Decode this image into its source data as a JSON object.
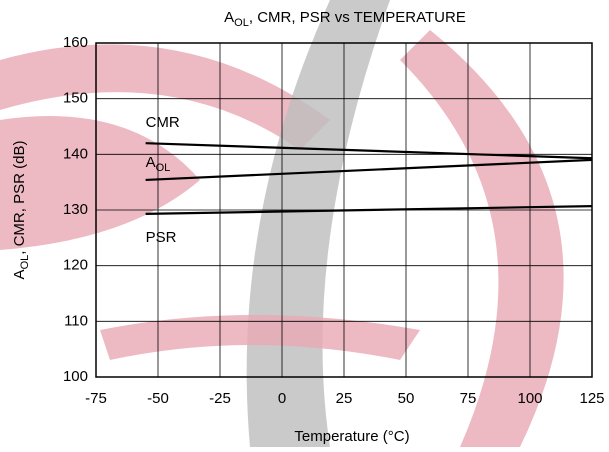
{
  "chart_data": {
    "type": "line",
    "title": "AOL, CMR, PSR vs TEMPERATURE",
    "x_label": "Temperature (°C)",
    "y_label": "AOL, CMR, PSR (dB)",
    "series": [
      {
        "name": "CMR",
        "color": "#000000",
        "x": [
          -55,
          125
        ],
        "values": [
          142.0,
          139.3
        ]
      },
      {
        "name": "AOL",
        "color": "#000000",
        "x": [
          -55,
          125
        ],
        "values": [
          135.4,
          139.0
        ]
      },
      {
        "name": "PSR",
        "color": "#000000",
        "x": [
          -55,
          125
        ],
        "values": [
          129.3,
          130.7
        ]
      }
    ],
    "xlim": [
      -75,
      125
    ],
    "xticks": [
      -75,
      -50,
      -25,
      0,
      25,
      50,
      75,
      100,
      125
    ],
    "ylim": [
      100,
      160
    ],
    "yticks": [
      100,
      110,
      120,
      130,
      140,
      150,
      160
    ],
    "grid": true
  }
}
